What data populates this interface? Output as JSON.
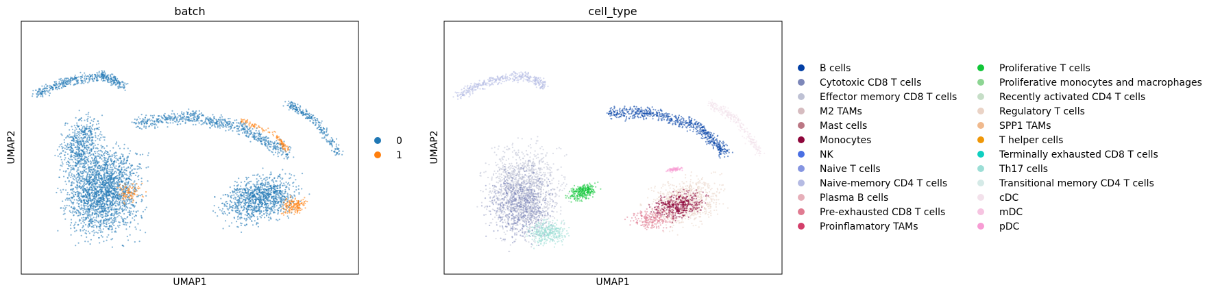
{
  "chart_data": [
    {
      "type": "scatter",
      "title": "batch",
      "xlabel": "UMAP1",
      "ylabel": "UMAP2",
      "grid": false,
      "ticks": false,
      "legend_placement": "right",
      "series": [
        {
          "name": "0",
          "color": "#1f77b4"
        },
        {
          "name": "1",
          "color": "#ff7f0e"
        }
      ]
    },
    {
      "type": "scatter",
      "title": "cell_type",
      "xlabel": "UMAP1",
      "ylabel": "UMAP2",
      "grid": false,
      "ticks": false,
      "legend_placement": "right",
      "legend_columns": 2,
      "series": [
        {
          "name": "B cells",
          "color": "#023fa5"
        },
        {
          "name": "Cytotoxic CD8 T cells",
          "color": "#7d87b9"
        },
        {
          "name": "Effector memory CD8 T cells",
          "color": "#bec1d4"
        },
        {
          "name": "M2 TAMs",
          "color": "#d6bcc0"
        },
        {
          "name": "Mast cells",
          "color": "#bb7784"
        },
        {
          "name": "Monocytes",
          "color": "#8e063b"
        },
        {
          "name": "NK",
          "color": "#4a6fe3"
        },
        {
          "name": "Naive T cells",
          "color": "#8595e1"
        },
        {
          "name": "Naive-memory CD4 T cells",
          "color": "#b5bbe3"
        },
        {
          "name": "Plasma B cells",
          "color": "#e6afb9"
        },
        {
          "name": "Pre-exhausted CD8 T cells",
          "color": "#e07b91"
        },
        {
          "name": "Proinflamatory TAMs",
          "color": "#d33f6a"
        },
        {
          "name": "Proliferative T cells",
          "color": "#11c638"
        },
        {
          "name": "Proliferative monocytes and macrophages",
          "color": "#8dd593"
        },
        {
          "name": "Recently activated CD4 T cells",
          "color": "#c6dec7"
        },
        {
          "name": "Regulatory T cells",
          "color": "#ead3c6"
        },
        {
          "name": "SPP1 TAMs",
          "color": "#f0b98d"
        },
        {
          "name": "T helper cells",
          "color": "#ef9708"
        },
        {
          "name": "Terminally exhausted CD8 T cells",
          "color": "#0fcfc0"
        },
        {
          "name": "Th17 cells",
          "color": "#9cded6"
        },
        {
          "name": "Transitional memory CD4 T cells",
          "color": "#d5eae7"
        },
        {
          "name": "cDC",
          "color": "#f3e1eb"
        },
        {
          "name": "mDC",
          "color": "#f6c4e1"
        },
        {
          "name": "pDC",
          "color": "#f79cd4"
        }
      ]
    }
  ]
}
